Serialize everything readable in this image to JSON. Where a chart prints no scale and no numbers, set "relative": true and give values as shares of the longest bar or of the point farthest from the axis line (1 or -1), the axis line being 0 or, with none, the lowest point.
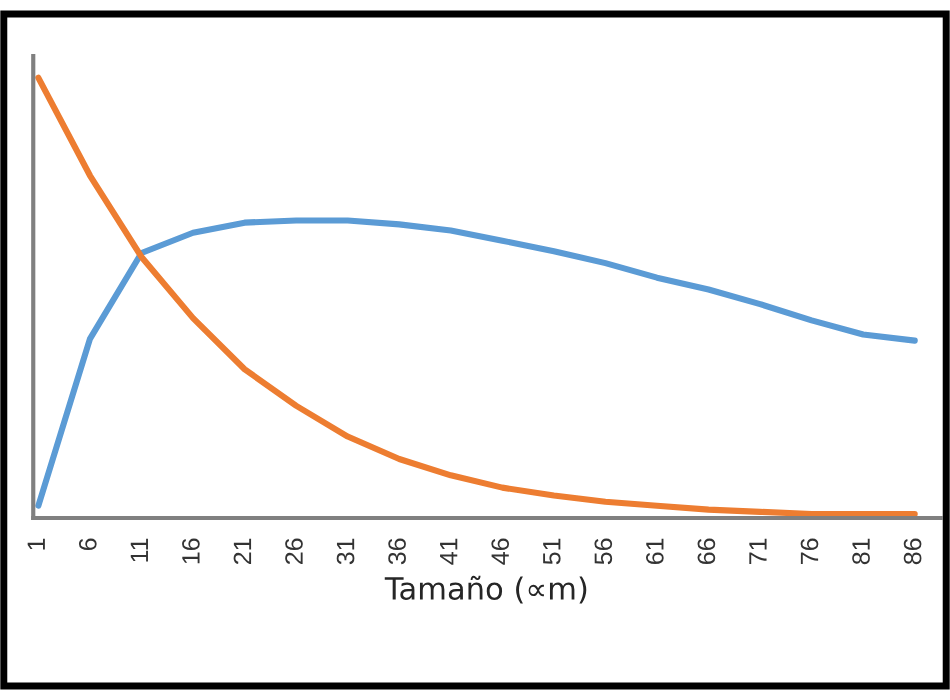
{
  "chart_data": {
    "type": "line",
    "relative": true,
    "xlabel": "Tamaño (∝m)",
    "categories": [
      "1",
      "6",
      "11",
      "16",
      "21",
      "26",
      "31",
      "36",
      "41",
      "46",
      "51",
      "56",
      "61",
      "66",
      "71",
      "76",
      "81",
      "86"
    ],
    "series": [
      {
        "color": "#5b9bd5",
        "values": [
          0.028,
          0.407,
          0.602,
          0.648,
          0.671,
          0.676,
          0.676,
          0.667,
          0.653,
          0.63,
          0.606,
          0.579,
          0.546,
          0.519,
          0.486,
          0.449,
          0.417,
          0.403
        ]
      },
      {
        "color": "#ed7d31",
        "values": [
          1,
          0.778,
          0.593,
          0.454,
          0.338,
          0.255,
          0.185,
          0.134,
          0.097,
          0.069,
          0.051,
          0.037,
          0.028,
          0.019,
          0.014,
          0.009,
          0.009,
          0.009
        ]
      }
    ],
    "grid": false,
    "legend": false,
    "marker": "none",
    "line_style": "solid"
  }
}
